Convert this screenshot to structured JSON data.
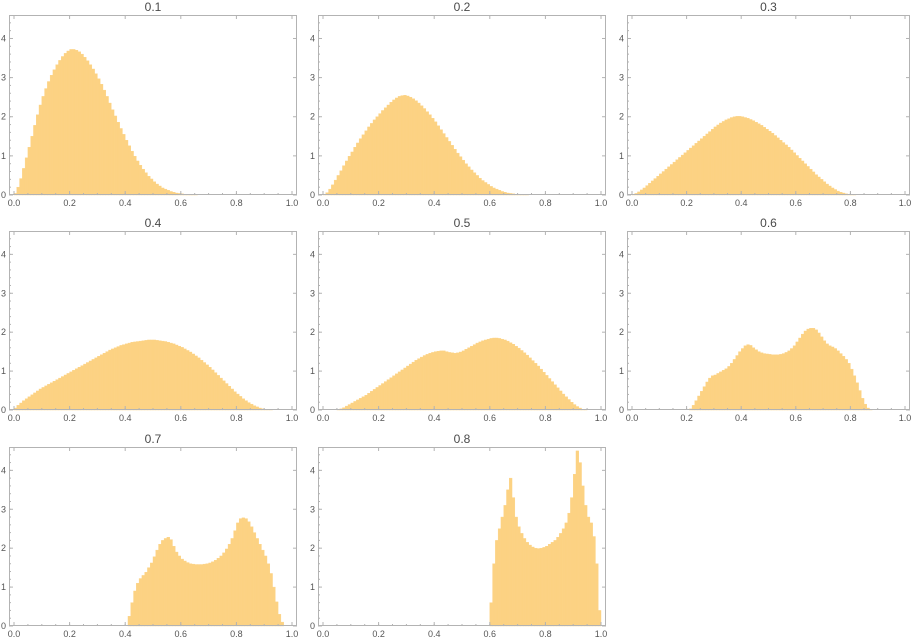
{
  "chart_data": [
    {
      "type": "histogram",
      "title": "0.1",
      "xlim": [
        0,
        1
      ],
      "ylim": [
        0,
        4.6
      ],
      "xticks": [
        "0.0",
        "0.2",
        "0.4",
        "0.6",
        "0.8",
        "1.0"
      ],
      "yticks": [
        "0",
        "1",
        "2",
        "3",
        "4"
      ],
      "bins": {
        "start": 0,
        "width": 0.01,
        "count": 100
      },
      "values": [
        0.04,
        0.2,
        0.42,
        0.68,
        0.95,
        1.22,
        1.5,
        1.78,
        2.05,
        2.3,
        2.52,
        2.72,
        2.9,
        3.06,
        3.2,
        3.33,
        3.44,
        3.54,
        3.62,
        3.68,
        3.72,
        3.72,
        3.7,
        3.66,
        3.6,
        3.52,
        3.43,
        3.33,
        3.22,
        3.1,
        2.97,
        2.83,
        2.68,
        2.52,
        2.35,
        2.18,
        2.02,
        1.86,
        1.7,
        1.55,
        1.4,
        1.26,
        1.12,
        0.99,
        0.87,
        0.76,
        0.66,
        0.57,
        0.48,
        0.41,
        0.34,
        0.28,
        0.23,
        0.18,
        0.15,
        0.12,
        0.09,
        0.07,
        0.05,
        0.04,
        0.03,
        0.02,
        0.01,
        0.01,
        0.01,
        0.005,
        0,
        0,
        0,
        0,
        0,
        0,
        0,
        0,
        0,
        0,
        0,
        0,
        0,
        0,
        0,
        0,
        0,
        0,
        0,
        0,
        0,
        0,
        0,
        0,
        0,
        0,
        0,
        0,
        0,
        0,
        0,
        0,
        0,
        0
      ]
    },
    {
      "type": "histogram",
      "title": "0.2",
      "xlim": [
        0,
        1
      ],
      "ylim": [
        0,
        4.6
      ],
      "xticks": [
        "0.0",
        "0.2",
        "0.4",
        "0.6",
        "0.8",
        "1.0"
      ],
      "yticks": [
        "0",
        "1",
        "2",
        "3",
        "4"
      ],
      "bins": {
        "start": 0,
        "width": 0.01,
        "count": 100
      },
      "values": [
        0.01,
        0.06,
        0.15,
        0.26,
        0.38,
        0.5,
        0.62,
        0.75,
        0.87,
        0.99,
        1.1,
        1.22,
        1.33,
        1.44,
        1.54,
        1.64,
        1.74,
        1.83,
        1.92,
        2.0,
        2.08,
        2.16,
        2.23,
        2.3,
        2.37,
        2.43,
        2.48,
        2.52,
        2.54,
        2.55,
        2.53,
        2.5,
        2.46,
        2.41,
        2.35,
        2.28,
        2.21,
        2.13,
        2.05,
        1.96,
        1.87,
        1.77,
        1.67,
        1.57,
        1.47,
        1.37,
        1.27,
        1.17,
        1.07,
        0.98,
        0.89,
        0.8,
        0.72,
        0.64,
        0.57,
        0.5,
        0.43,
        0.37,
        0.32,
        0.27,
        0.22,
        0.18,
        0.15,
        0.12,
        0.09,
        0.07,
        0.05,
        0.04,
        0.03,
        0.02,
        0.015,
        0.01,
        0.005,
        0.003,
        0,
        0,
        0,
        0,
        0,
        0,
        0,
        0,
        0,
        0,
        0,
        0,
        0,
        0,
        0,
        0,
        0,
        0,
        0,
        0,
        0,
        0,
        0,
        0,
        0,
        0
      ]
    },
    {
      "type": "histogram",
      "title": "0.3",
      "xlim": [
        0,
        1
      ],
      "ylim": [
        0,
        4.6
      ],
      "xticks": [
        "0.0",
        "0.2",
        "0.4",
        "0.6",
        "0.8",
        "1.0"
      ],
      "yticks": [
        "0",
        "1",
        "2",
        "3",
        "4"
      ],
      "bins": {
        "start": 0,
        "width": 0.01,
        "count": 100
      },
      "values": [
        0.01,
        0.04,
        0.08,
        0.13,
        0.18,
        0.24,
        0.3,
        0.36,
        0.42,
        0.48,
        0.54,
        0.6,
        0.66,
        0.72,
        0.78,
        0.84,
        0.9,
        0.96,
        1.02,
        1.08,
        1.14,
        1.2,
        1.26,
        1.32,
        1.38,
        1.44,
        1.5,
        1.56,
        1.62,
        1.68,
        1.74,
        1.79,
        1.84,
        1.88,
        1.92,
        1.95,
        1.98,
        2.0,
        2.01,
        2.01,
        2.0,
        1.98,
        1.96,
        1.93,
        1.9,
        1.86,
        1.82,
        1.78,
        1.73,
        1.68,
        1.63,
        1.58,
        1.52,
        1.46,
        1.4,
        1.34,
        1.28,
        1.22,
        1.15,
        1.08,
        1.01,
        0.94,
        0.87,
        0.8,
        0.73,
        0.66,
        0.59,
        0.52,
        0.46,
        0.4,
        0.34,
        0.28,
        0.23,
        0.18,
        0.14,
        0.1,
        0.07,
        0.05,
        0.03,
        0.02,
        0.01,
        0.005,
        0,
        0,
        0,
        0,
        0,
        0,
        0,
        0,
        0,
        0,
        0,
        0,
        0,
        0,
        0,
        0,
        0,
        0
      ]
    },
    {
      "type": "histogram",
      "title": "0.4",
      "xlim": [
        0,
        1
      ],
      "ylim": [
        0,
        4.6
      ],
      "xticks": [
        "0.0",
        "0.2",
        "0.4",
        "0.6",
        "0.8",
        "1.0"
      ],
      "yticks": [
        "0",
        "1",
        "2",
        "3",
        "4"
      ],
      "bins": {
        "start": 0,
        "width": 0.01,
        "count": 100
      },
      "values": [
        0.05,
        0.12,
        0.18,
        0.24,
        0.29,
        0.34,
        0.39,
        0.44,
        0.49,
        0.54,
        0.58,
        0.62,
        0.66,
        0.7,
        0.74,
        0.78,
        0.82,
        0.86,
        0.9,
        0.94,
        0.98,
        1.02,
        1.06,
        1.1,
        1.14,
        1.18,
        1.22,
        1.26,
        1.3,
        1.34,
        1.38,
        1.42,
        1.46,
        1.5,
        1.54,
        1.57,
        1.6,
        1.63,
        1.66,
        1.68,
        1.7,
        1.72,
        1.74,
        1.75,
        1.76,
        1.77,
        1.78,
        1.79,
        1.8,
        1.8,
        1.8,
        1.79,
        1.78,
        1.77,
        1.76,
        1.74,
        1.72,
        1.7,
        1.67,
        1.64,
        1.61,
        1.57,
        1.53,
        1.49,
        1.44,
        1.39,
        1.34,
        1.28,
        1.22,
        1.16,
        1.1,
        1.03,
        0.96,
        0.89,
        0.82,
        0.75,
        0.68,
        0.61,
        0.54,
        0.47,
        0.41,
        0.35,
        0.29,
        0.24,
        0.19,
        0.15,
        0.11,
        0.08,
        0.05,
        0.03,
        0.02,
        0.01,
        0.005,
        0,
        0,
        0,
        0,
        0,
        0,
        0
      ]
    },
    {
      "type": "histogram",
      "title": "0.5",
      "xlim": [
        0,
        1
      ],
      "ylim": [
        0,
        4.6
      ],
      "xticks": [
        "0.0",
        "0.2",
        "0.4",
        "0.6",
        "0.8",
        "1.0"
      ],
      "yticks": [
        "0",
        "1",
        "2",
        "3",
        "4"
      ],
      "bins": {
        "start": 0,
        "width": 0.01,
        "count": 100
      },
      "values": [
        0,
        0,
        0,
        0,
        0,
        0.01,
        0.03,
        0.06,
        0.1,
        0.14,
        0.18,
        0.22,
        0.26,
        0.3,
        0.34,
        0.38,
        0.43,
        0.48,
        0.53,
        0.58,
        0.63,
        0.68,
        0.73,
        0.78,
        0.83,
        0.88,
        0.93,
        0.98,
        1.03,
        1.08,
        1.13,
        1.18,
        1.23,
        1.28,
        1.32,
        1.36,
        1.4,
        1.43,
        1.46,
        1.48,
        1.5,
        1.51,
        1.52,
        1.52,
        1.5,
        1.48,
        1.47,
        1.46,
        1.47,
        1.49,
        1.52,
        1.56,
        1.6,
        1.64,
        1.68,
        1.72,
        1.75,
        1.78,
        1.8,
        1.82,
        1.84,
        1.85,
        1.85,
        1.84,
        1.82,
        1.8,
        1.77,
        1.73,
        1.69,
        1.64,
        1.59,
        1.53,
        1.47,
        1.41,
        1.34,
        1.27,
        1.2,
        1.13,
        1.05,
        0.97,
        0.89,
        0.81,
        0.73,
        0.65,
        0.57,
        0.49,
        0.41,
        0.34,
        0.27,
        0.2,
        0.14,
        0.09,
        0.05,
        0.02,
        0.01,
        0,
        0,
        0,
        0,
        0
      ]
    },
    {
      "type": "histogram",
      "title": "0.6",
      "xlim": [
        0,
        1
      ],
      "ylim": [
        0,
        4.6
      ],
      "xticks": [
        "0.0",
        "0.2",
        "0.4",
        "0.6",
        "0.8",
        "1.0"
      ],
      "yticks": [
        "0",
        "1",
        "2",
        "3",
        "4"
      ],
      "bins": {
        "start": 0,
        "width": 0.01,
        "count": 100
      },
      "values": [
        0,
        0,
        0,
        0,
        0,
        0,
        0,
        0,
        0,
        0,
        0,
        0,
        0,
        0,
        0,
        0,
        0,
        0,
        0,
        0,
        0,
        0.03,
        0.12,
        0.24,
        0.36,
        0.48,
        0.6,
        0.72,
        0.82,
        0.88,
        0.9,
        0.94,
        0.98,
        1.02,
        1.06,
        1.12,
        1.2,
        1.3,
        1.4,
        1.5,
        1.58,
        1.65,
        1.68,
        1.66,
        1.6,
        1.55,
        1.5,
        1.47,
        1.45,
        1.44,
        1.43,
        1.42,
        1.42,
        1.42,
        1.43,
        1.45,
        1.48,
        1.52,
        1.58,
        1.65,
        1.75,
        1.85,
        1.95,
        2.03,
        2.08,
        2.1,
        2.1,
        2.06,
        1.98,
        1.88,
        1.78,
        1.7,
        1.65,
        1.62,
        1.58,
        1.52,
        1.45,
        1.38,
        1.3,
        1.2,
        1.05,
        0.88,
        0.7,
        0.5,
        0.3,
        0.15,
        0.05,
        0.01,
        0,
        0,
        0,
        0,
        0,
        0,
        0,
        0,
        0,
        0,
        0,
        0
      ]
    },
    {
      "type": "histogram",
      "title": "0.7",
      "xlim": [
        0,
        1
      ],
      "ylim": [
        0,
        4.6
      ],
      "xticks": [
        "0.0",
        "0.2",
        "0.4",
        "0.6",
        "0.8",
        "1.0"
      ],
      "yticks": [
        "0",
        "1",
        "2",
        "3",
        "4"
      ],
      "bins": {
        "start": 0,
        "width": 0.01,
        "count": 100
      },
      "values": [
        0,
        0,
        0,
        0,
        0,
        0,
        0,
        0,
        0,
        0,
        0,
        0,
        0,
        0,
        0,
        0,
        0,
        0,
        0,
        0,
        0,
        0,
        0,
        0,
        0,
        0,
        0,
        0,
        0,
        0,
        0,
        0,
        0,
        0,
        0,
        0,
        0,
        0,
        0,
        0,
        0,
        0.25,
        0.6,
        0.9,
        1.1,
        1.22,
        1.3,
        1.38,
        1.5,
        1.62,
        1.78,
        1.95,
        2.1,
        2.2,
        2.25,
        2.28,
        2.22,
        2.05,
        1.9,
        1.8,
        1.72,
        1.67,
        1.63,
        1.6,
        1.59,
        1.58,
        1.58,
        1.58,
        1.59,
        1.6,
        1.62,
        1.65,
        1.69,
        1.74,
        1.8,
        1.88,
        1.98,
        2.1,
        2.25,
        2.45,
        2.65,
        2.76,
        2.78,
        2.76,
        2.68,
        2.55,
        2.4,
        2.25,
        2.1,
        1.95,
        1.8,
        1.6,
        1.35,
        1.0,
        0.62,
        0.3,
        0.1,
        0,
        0,
        0
      ]
    },
    {
      "type": "histogram",
      "title": "0.8",
      "xlim": [
        0,
        1
      ],
      "ylim": [
        0,
        4.6
      ],
      "xticks": [
        "0.0",
        "0.2",
        "0.4",
        "0.6",
        "0.8",
        "1.0"
      ],
      "yticks": [
        "0",
        "1",
        "2",
        "3",
        "4"
      ],
      "bins": {
        "start": 0,
        "width": 0.01,
        "count": 100
      },
      "values": [
        0,
        0,
        0,
        0,
        0,
        0,
        0,
        0,
        0,
        0,
        0,
        0,
        0,
        0,
        0,
        0,
        0,
        0,
        0,
        0,
        0,
        0,
        0,
        0,
        0,
        0,
        0,
        0,
        0,
        0,
        0,
        0,
        0,
        0,
        0,
        0,
        0,
        0,
        0,
        0,
        0,
        0,
        0,
        0,
        0,
        0,
        0,
        0,
        0,
        0,
        0,
        0,
        0,
        0,
        0,
        0,
        0,
        0,
        0,
        0,
        0.6,
        1.6,
        2.2,
        2.5,
        2.8,
        3.1,
        3.5,
        3.8,
        3.3,
        2.8,
        2.55,
        2.38,
        2.25,
        2.15,
        2.08,
        2.03,
        2.0,
        1.99,
        2.0,
        2.02,
        2.05,
        2.1,
        2.15,
        2.2,
        2.28,
        2.38,
        2.5,
        2.65,
        2.9,
        3.3,
        3.9,
        4.5,
        4.2,
        3.6,
        3.1,
        2.8,
        2.65,
        2.3,
        1.6,
        0.4
      ]
    }
  ]
}
